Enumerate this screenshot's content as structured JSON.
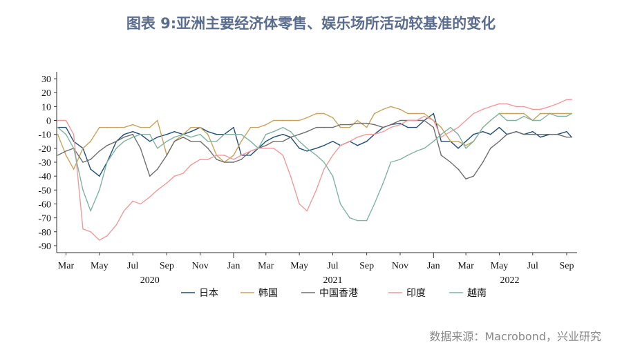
{
  "title": "图表 9:亚洲主要经济体零售、娱乐场所活动较基准的变化",
  "source": "数据来源：Macrobond，兴业研究",
  "chart_data": {
    "type": "line",
    "title": "图表 9:亚洲主要经济体零售、娱乐场所活动较基准的变化",
    "xlabel": "",
    "ylabel": "",
    "ylim": [
      -95,
      35
    ],
    "yticks": [
      30,
      20,
      10,
      0,
      -10,
      -20,
      -30,
      -40,
      -50,
      -60,
      -70,
      -80,
      -90
    ],
    "xlim": [
      "2020-02-13",
      "2022-09-20"
    ],
    "xticks": [
      {
        "date": "2020-03-01",
        "label": "Mar"
      },
      {
        "date": "2020-05-01",
        "label": "May"
      },
      {
        "date": "2020-07-01",
        "label": "Jul"
      },
      {
        "date": "2020-09-01",
        "label": "Sep"
      },
      {
        "date": "2020-11-01",
        "label": "Nov"
      },
      {
        "date": "2021-01-01",
        "label": "Jan"
      },
      {
        "date": "2021-03-01",
        "label": "Mar"
      },
      {
        "date": "2021-05-01",
        "label": "May"
      },
      {
        "date": "2021-07-01",
        "label": "Jul"
      },
      {
        "date": "2021-09-01",
        "label": "Sep"
      },
      {
        "date": "2021-11-01",
        "label": "Nov"
      },
      {
        "date": "2022-01-01",
        "label": "Jan"
      },
      {
        "date": "2022-03-01",
        "label": "Mar"
      },
      {
        "date": "2022-05-01",
        "label": "May"
      },
      {
        "date": "2022-07-01",
        "label": "Jul"
      },
      {
        "date": "2022-09-01",
        "label": "Sep"
      }
    ],
    "years": [
      {
        "label": "2020",
        "date": "2020-08-01"
      },
      {
        "label": "2021",
        "date": "2021-07-01"
      },
      {
        "label": "2022",
        "date": "2022-05-20"
      }
    ],
    "legend_position": "bottom",
    "grid": false,
    "x": [
      "2020-02-15",
      "2020-03-01",
      "2020-03-15",
      "2020-04-01",
      "2020-04-15",
      "2020-05-01",
      "2020-05-15",
      "2020-06-01",
      "2020-06-15",
      "2020-07-01",
      "2020-07-15",
      "2020-08-01",
      "2020-08-15",
      "2020-09-01",
      "2020-09-15",
      "2020-10-01",
      "2020-10-15",
      "2020-11-01",
      "2020-11-15",
      "2020-12-01",
      "2020-12-15",
      "2021-01-01",
      "2021-01-15",
      "2021-02-01",
      "2021-02-15",
      "2021-03-01",
      "2021-03-15",
      "2021-04-01",
      "2021-04-15",
      "2021-05-01",
      "2021-05-15",
      "2021-06-01",
      "2021-06-15",
      "2021-07-01",
      "2021-07-15",
      "2021-08-01",
      "2021-08-15",
      "2021-09-01",
      "2021-09-15",
      "2021-10-01",
      "2021-10-15",
      "2021-11-01",
      "2021-11-15",
      "2021-12-01",
      "2021-12-15",
      "2022-01-01",
      "2022-01-15",
      "2022-02-01",
      "2022-02-15",
      "2022-03-01",
      "2022-03-15",
      "2022-04-01",
      "2022-04-15",
      "2022-05-01",
      "2022-05-15",
      "2022-06-01",
      "2022-06-15",
      "2022-07-01",
      "2022-07-15",
      "2022-08-01",
      "2022-08-15",
      "2022-09-01",
      "2022-09-10"
    ],
    "series": [
      {
        "name": "日本",
        "color": "#1f4e79",
        "values": [
          -5,
          -5,
          -15,
          -20,
          -35,
          -40,
          -30,
          -15,
          -10,
          -8,
          -10,
          -15,
          -12,
          -10,
          -8,
          -10,
          -8,
          -5,
          -8,
          -10,
          -10,
          -5,
          -25,
          -25,
          -20,
          -15,
          -12,
          -10,
          -12,
          -20,
          -22,
          -20,
          -18,
          -15,
          -18,
          -15,
          -18,
          -15,
          -10,
          -5,
          -3,
          -2,
          -5,
          -5,
          0,
          5,
          -15,
          -15,
          -20,
          -15,
          -10,
          -8,
          -10,
          -5,
          -10,
          -8,
          -10,
          -8,
          -12,
          -10,
          -10,
          -8,
          -12
        ]
      },
      {
        "name": "韩国",
        "color": "#c9a25a",
        "values": [
          -10,
          -25,
          -35,
          -20,
          -15,
          -5,
          -5,
          -5,
          -5,
          -3,
          -5,
          -5,
          0,
          -25,
          -15,
          -10,
          -5,
          -5,
          -10,
          -25,
          -30,
          -25,
          -15,
          -5,
          -5,
          -3,
          0,
          0,
          0,
          0,
          2,
          5,
          5,
          2,
          -5,
          -5,
          0,
          -5,
          5,
          8,
          10,
          8,
          5,
          5,
          5,
          0,
          -5,
          -15,
          -15,
          -18,
          -15,
          -5,
          0,
          5,
          5,
          5,
          5,
          0,
          5,
          5,
          5,
          5,
          5
        ]
      },
      {
        "name": "中国香港",
        "color": "#6e6e6e",
        "values": [
          -25,
          -22,
          -20,
          -30,
          -28,
          -22,
          -18,
          -15,
          -12,
          -10,
          -20,
          -40,
          -35,
          -25,
          -15,
          -12,
          -15,
          -15,
          -20,
          -28,
          -30,
          -30,
          -28,
          -22,
          -20,
          -18,
          -15,
          -15,
          -12,
          -10,
          -8,
          -5,
          -5,
          -5,
          -3,
          -3,
          -2,
          -2,
          -3,
          -5,
          -3,
          0,
          0,
          0,
          0,
          -5,
          -25,
          -30,
          -35,
          -42,
          -40,
          -30,
          -20,
          -15,
          -10,
          -8,
          -10,
          -10,
          -10,
          -10,
          -10,
          -12,
          -12
        ]
      },
      {
        "name": "印度",
        "color": "#f09a9a",
        "values": [
          0,
          0,
          -10,
          -78,
          -80,
          -86,
          -83,
          -75,
          -65,
          -58,
          -60,
          -55,
          -50,
          -45,
          -40,
          -38,
          -32,
          -28,
          -28,
          -25,
          -25,
          -28,
          -25,
          -22,
          -20,
          -20,
          -20,
          -25,
          -40,
          -60,
          -65,
          -50,
          -35,
          -25,
          -18,
          -15,
          -12,
          -10,
          -10,
          -8,
          -5,
          -3,
          0,
          0,
          3,
          0,
          -12,
          -8,
          -5,
          0,
          5,
          8,
          10,
          12,
          12,
          10,
          10,
          8,
          8,
          10,
          12,
          15,
          15
        ]
      },
      {
        "name": "越南",
        "color": "#7fb3a0",
        "values": [
          -5,
          -10,
          -20,
          -50,
          -65,
          -50,
          -30,
          -20,
          -15,
          -12,
          -10,
          -10,
          -20,
          -15,
          -12,
          -10,
          -12,
          -10,
          -15,
          -15,
          -10,
          -10,
          -10,
          -15,
          -20,
          -10,
          -8,
          -5,
          -8,
          -15,
          -20,
          -25,
          -30,
          -40,
          -60,
          -70,
          -72,
          -72,
          -60,
          -45,
          -30,
          -28,
          -25,
          -22,
          -20,
          -15,
          -10,
          -5,
          -10,
          -20,
          -15,
          -5,
          0,
          5,
          0,
          0,
          3,
          0,
          0,
          5,
          3,
          3,
          5
        ]
      }
    ]
  }
}
